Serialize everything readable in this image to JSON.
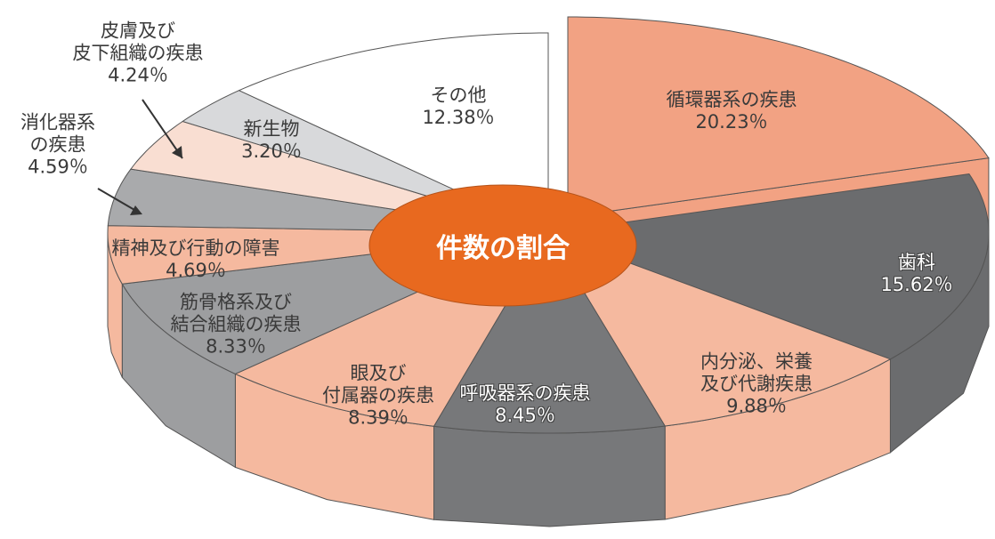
{
  "chart_data": {
    "type": "pie3d",
    "title": "件数の割合",
    "categories": [
      "循環器系の疾患",
      "歯科",
      "内分泌、栄養\n及び代謝疾患",
      "呼吸器系の疾患",
      "眼及び\n付属器の疾患",
      "筋骨格系及び\n結合組織の疾患",
      "精神及び行動の障害",
      "消化器系\nの疾患",
      "皮膚及び\n皮下組織の疾患",
      "新生物",
      "その他"
    ],
    "values": [
      20.23,
      15.62,
      9.88,
      8.45,
      8.39,
      8.33,
      4.69,
      4.59,
      4.24,
      3.2,
      12.38
    ],
    "value_labels": [
      "20.23％",
      "15.62％",
      "9.88％",
      "8.45％",
      "8.39％",
      "8.33％",
      "4.69％",
      "4.59％",
      "4.24％",
      "3.20％",
      "12.38％"
    ],
    "colors": [
      "#f2a283",
      "#6b6c6e",
      "#f5b99f",
      "#77787a",
      "#f5b99f",
      "#9d9ea0",
      "#f5b99f",
      "#a9aaac",
      "#f9ded2",
      "#d8d9db",
      "#ffffff"
    ]
  }
}
